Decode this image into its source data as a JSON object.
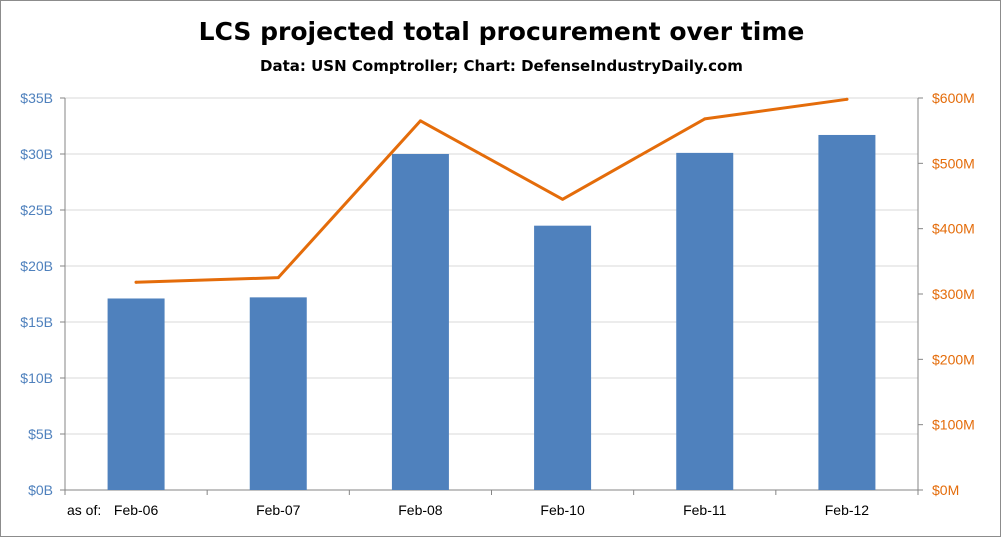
{
  "chart_data": {
    "type": "bar",
    "title": "LCS projected total procurement over time",
    "subtitle": "Data: USN Comptroller; Chart: DefenseIndustryDaily.com",
    "x_prefix": "as of:",
    "categories": [
      "Feb-06",
      "Feb-07",
      "Feb-08",
      "Feb-10",
      "Feb-11",
      "Feb-12"
    ],
    "series": [
      {
        "type": "bar",
        "axis": "left",
        "unit": "billions USD",
        "color": "#4f81bd",
        "values": [
          17.1,
          17.2,
          30.0,
          23.6,
          30.1,
          31.7
        ]
      },
      {
        "type": "line",
        "axis": "right",
        "unit": "millions USD",
        "color": "#e46c0a",
        "values": [
          318,
          325,
          565,
          445,
          568,
          598
        ]
      }
    ],
    "left_axis": {
      "ylim": [
        0,
        35
      ],
      "ticks": [
        0,
        5,
        10,
        15,
        20,
        25,
        30,
        35
      ],
      "tick_labels": [
        "$0B",
        "$5B",
        "$10B",
        "$15B",
        "$20B",
        "$25B",
        "$30B",
        "$35B"
      ],
      "color": "#4f81bd"
    },
    "right_axis": {
      "ylim": [
        0,
        600
      ],
      "ticks": [
        0,
        100,
        200,
        300,
        400,
        500,
        600
      ],
      "tick_labels": [
        "$0M",
        "$100M",
        "$200M",
        "$300M",
        "$400M",
        "$500M",
        "$600M"
      ],
      "color": "#e46c0a"
    },
    "grid": true,
    "legend": "none"
  }
}
